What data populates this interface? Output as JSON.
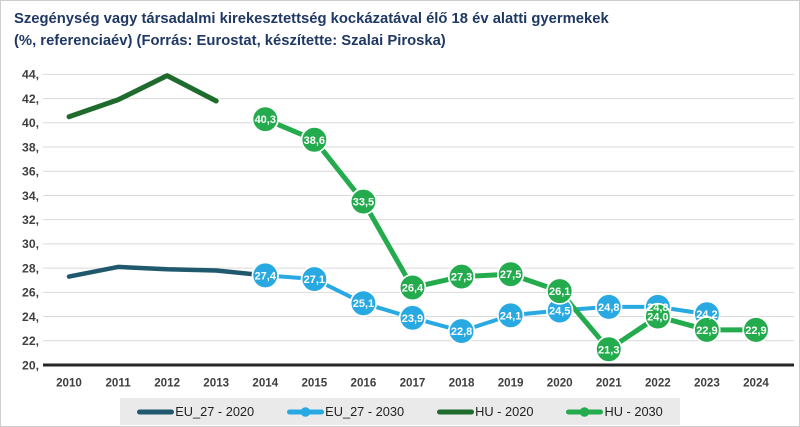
{
  "title": {
    "line1": "Szegénység vagy társadalmi kirekesztettség kockázatával élő 18 év alatti gyermekek",
    "line2": "(%, referenciaév) (Forrás: Eurostat, készítette: Szalai Piroska)"
  },
  "colors": {
    "title_text": "#1f3864",
    "axis_text": "#3f3f3f",
    "gridline": "#d9d9d9",
    "axis_line": "#262626",
    "legend_background": "#eaeaea",
    "legend_text": "#222222",
    "data_label_text": "#ffffff",
    "eu27_2020": "#20596e",
    "eu27_2030": "#29a9e1",
    "hu_2020": "#1f6b2e",
    "hu_2030": "#24ab4e"
  },
  "chart_data": {
    "type": "line",
    "title": "Szegénység vagy társadalmi kirekesztettség kockázatával élő 18 év alatti gyermekek (%, referenciaév) (Forrás: Eurostat, készítette: Szalai Piroska)",
    "xlabel": "",
    "ylabel": "",
    "x": [
      "2010",
      "2011",
      "2012",
      "2013",
      "2014",
      "2015",
      "2016",
      "2017",
      "2018",
      "2019",
      "2020",
      "2021",
      "2022",
      "2023",
      "2024"
    ],
    "y_ticks": [
      20,
      22,
      24,
      26,
      28,
      30,
      32,
      34,
      36,
      38,
      40,
      42,
      44
    ],
    "y_tick_labels": [
      "20,",
      "22,",
      "24,",
      "26,",
      "28,",
      "30,",
      "32,",
      "34,",
      "36,",
      "38,",
      "40,",
      "42,",
      "44,"
    ],
    "ylim": [
      20,
      44
    ],
    "grid": true,
    "legend_position": "bottom",
    "series": [
      {
        "name": "EU_27 - 2020",
        "color": "#20596e",
        "marker": false,
        "line_width": 4.5,
        "values": [
          27.3,
          28.1,
          27.9,
          27.8,
          27.4,
          null,
          null,
          null,
          null,
          null,
          null,
          null,
          null,
          null,
          null
        ],
        "labels": [
          null,
          null,
          null,
          null,
          null,
          null,
          null,
          null,
          null,
          null,
          null,
          null,
          null,
          null,
          null
        ]
      },
      {
        "name": "HU - 2020",
        "color": "#1f6b2e",
        "marker": false,
        "line_width": 5,
        "values": [
          40.5,
          41.9,
          43.9,
          41.8,
          null,
          null,
          null,
          null,
          null,
          null,
          null,
          null,
          null,
          null,
          null
        ],
        "labels": [
          null,
          null,
          null,
          null,
          null,
          null,
          null,
          null,
          null,
          null,
          null,
          null,
          null,
          null,
          null
        ]
      },
      {
        "name": "EU_27 - 2030",
        "color": "#29a9e1",
        "marker": true,
        "line_width": 4,
        "values": [
          null,
          null,
          null,
          null,
          27.4,
          27.1,
          25.1,
          23.9,
          22.8,
          24.1,
          24.5,
          24.8,
          24.8,
          24.2,
          null
        ],
        "labels": [
          null,
          null,
          null,
          null,
          "27,4",
          "27,1",
          "25,1",
          "23,9",
          "22,8",
          "24,1",
          "24,5",
          "24,8",
          "24,8",
          "24,2",
          null
        ]
      },
      {
        "name": "HU - 2030",
        "color": "#24ab4e",
        "marker": true,
        "line_width": 5,
        "values": [
          null,
          null,
          null,
          null,
          40.3,
          38.6,
          33.5,
          26.4,
          27.3,
          27.5,
          26.1,
          21.3,
          24.0,
          22.9,
          22.9
        ],
        "labels": [
          null,
          null,
          null,
          null,
          "40,3",
          "38,6",
          "33,5",
          "26,4",
          "27,3",
          "27,5",
          "26,1",
          "21,3",
          "24,0",
          "22,9",
          "22,9"
        ]
      }
    ],
    "legend_order": [
      "EU_27 - 2020",
      "EU_27 - 2030",
      "HU - 2020",
      "HU - 2030"
    ]
  }
}
